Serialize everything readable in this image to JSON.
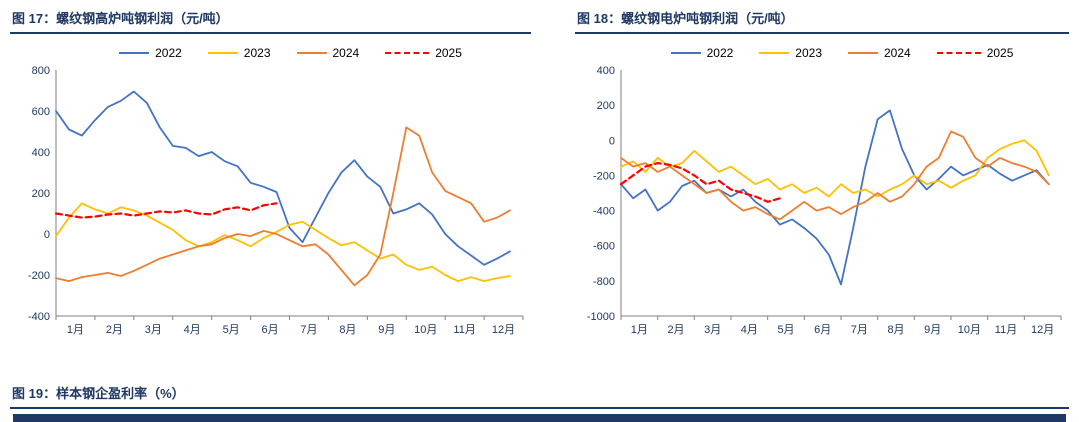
{
  "figures": [
    {
      "title": "图 17：螺纹钢高炉吨钢利润（元/吨）"
    },
    {
      "title": "图 18：螺纹钢电炉吨钢利润（元/吨）"
    },
    {
      "title": "图 19：样本钢企盈利率（%）"
    }
  ],
  "colors": {
    "title_navy": "#1F3864",
    "axis_gray": "#808080",
    "tick_text": "#1F3864",
    "series_2022": "#4472C4",
    "series_2023": "#FFC000",
    "series_2024": "#ED7D31",
    "series_2025": "#FF0000"
  },
  "chart_data": [
    {
      "type": "line",
      "title": "图 17：螺纹钢高炉吨钢利润（元/吨）",
      "categories": [
        "1月",
        "2月",
        "3月",
        "4月",
        "5月",
        "6月",
        "7月",
        "8月",
        "9月",
        "10月",
        "11月",
        "12月"
      ],
      "xlabel": "",
      "ylabel": "",
      "ylim": [
        -400,
        800
      ],
      "yticks": [
        800,
        600,
        400,
        200,
        0,
        -200,
        -400
      ],
      "grid": false,
      "legend_position": "top",
      "points_per_month": 3,
      "series": [
        {
          "name": "2022",
          "color": "#4472C4",
          "dash": false,
          "values": [
            600,
            510,
            480,
            555,
            620,
            650,
            695,
            640,
            520,
            430,
            420,
            380,
            400,
            355,
            330,
            250,
            230,
            205,
            30,
            -40,
            80,
            200,
            300,
            360,
            280,
            230,
            100,
            120,
            150,
            95,
            0,
            -60,
            -105,
            -150,
            -120,
            -85
          ]
        },
        {
          "name": "2023",
          "color": "#FFC000",
          "dash": false,
          "values": [
            -10,
            80,
            150,
            120,
            100,
            130,
            115,
            90,
            55,
            20,
            -30,
            -60,
            -40,
            -5,
            -30,
            -60,
            -20,
            10,
            45,
            60,
            20,
            -20,
            -55,
            -40,
            -80,
            -120,
            -100,
            -150,
            -175,
            -160,
            -200,
            -230,
            -210,
            -230,
            -215,
            -205
          ]
        },
        {
          "name": "2024",
          "color": "#ED7D31",
          "dash": false,
          "values": [
            -215,
            -230,
            -210,
            -200,
            -190,
            -205,
            -180,
            -150,
            -120,
            -100,
            -80,
            -60,
            -50,
            -20,
            0,
            -10,
            15,
            0,
            -30,
            -60,
            -50,
            -100,
            -175,
            -250,
            -200,
            -100,
            200,
            520,
            480,
            300,
            210,
            180,
            150,
            60,
            80,
            115
          ]
        },
        {
          "name": "2025",
          "color": "#FF0000",
          "dash": true,
          "values": [
            100,
            90,
            80,
            85,
            95,
            100,
            90,
            100,
            110,
            105,
            115,
            100,
            95,
            120,
            130,
            115,
            140,
            150
          ]
        }
      ]
    },
    {
      "type": "line",
      "title": "图 18：螺纹钢电炉吨钢利润（元/吨）",
      "categories": [
        "1月",
        "2月",
        "3月",
        "4月",
        "5月",
        "6月",
        "7月",
        "8月",
        "9月",
        "10月",
        "11月",
        "12月"
      ],
      "xlabel": "",
      "ylabel": "",
      "ylim": [
        -1000,
        400
      ],
      "yticks": [
        400,
        200,
        0,
        -200,
        -400,
        -600,
        -800,
        -1000
      ],
      "grid": false,
      "legend_position": "top",
      "points_per_month": 3,
      "series": [
        {
          "name": "2022",
          "color": "#4472C4",
          "dash": false,
          "values": [
            -250,
            -330,
            -280,
            -400,
            -350,
            -260,
            -230,
            -300,
            -280,
            -320,
            -280,
            -350,
            -400,
            -480,
            -450,
            -500,
            -560,
            -650,
            -820,
            -500,
            -150,
            120,
            170,
            -50,
            -200,
            -280,
            -220,
            -150,
            -200,
            -170,
            -140,
            -190,
            -230,
            -200,
            -170,
            -250
          ]
        },
        {
          "name": "2023",
          "color": "#FFC000",
          "dash": false,
          "values": [
            -150,
            -120,
            -180,
            -100,
            -150,
            -130,
            -60,
            -120,
            -180,
            -150,
            -200,
            -250,
            -220,
            -280,
            -250,
            -300,
            -270,
            -320,
            -250,
            -300,
            -280,
            -320,
            -280,
            -250,
            -200,
            -250,
            -230,
            -270,
            -230,
            -200,
            -100,
            -50,
            -20,
            0,
            -60,
            -200
          ]
        },
        {
          "name": "2024",
          "color": "#ED7D31",
          "dash": false,
          "values": [
            -100,
            -150,
            -130,
            -180,
            -150,
            -200,
            -250,
            -300,
            -280,
            -350,
            -400,
            -380,
            -420,
            -450,
            -400,
            -350,
            -400,
            -380,
            -420,
            -380,
            -350,
            -300,
            -350,
            -320,
            -250,
            -150,
            -100,
            50,
            20,
            -100,
            -150,
            -100,
            -130,
            -150,
            -180,
            -250
          ]
        },
        {
          "name": "2025",
          "color": "#FF0000",
          "dash": true,
          "values": [
            -250,
            -200,
            -150,
            -130,
            -140,
            -160,
            -200,
            -250,
            -230,
            -280,
            -300,
            -320,
            -350,
            -330
          ]
        }
      ]
    }
  ]
}
